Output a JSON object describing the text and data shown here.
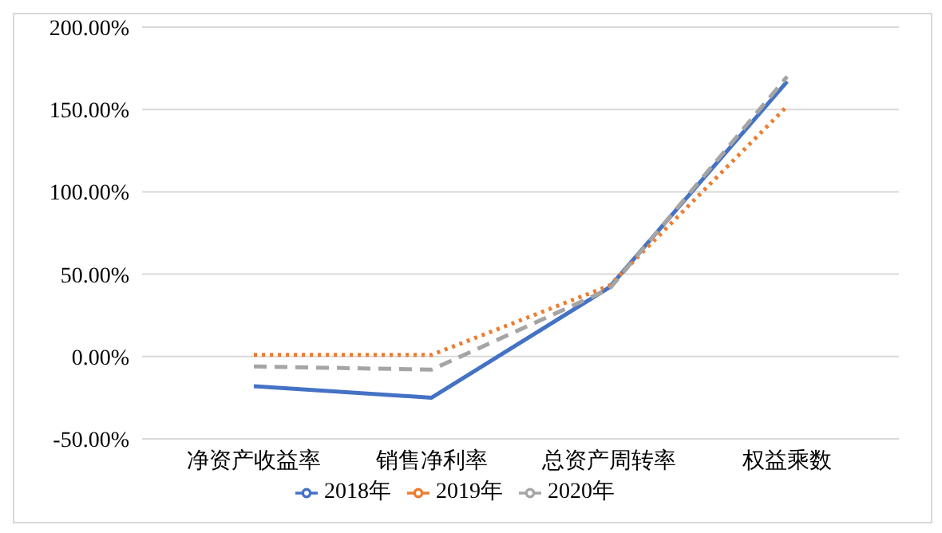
{
  "chart_data": {
    "type": "line",
    "categories": [
      "净资产收益率",
      "销售净利率",
      "总资产周转率",
      "权益乘数"
    ],
    "series": [
      {
        "name": "2018年",
        "color": "#4472c4",
        "line_style": "solid",
        "values": [
          -18,
          -25,
          42,
          167
        ]
      },
      {
        "name": "2019年",
        "color": "#ed7d31",
        "line_style": "dotted",
        "values": [
          1,
          1,
          43,
          152
        ]
      },
      {
        "name": "2020年",
        "color": "#a5a5a5",
        "line_style": "dashed",
        "values": [
          -6,
          -8,
          41,
          170
        ]
      }
    ],
    "ylim": [
      -50,
      200
    ],
    "yticks": [
      {
        "value": -50,
        "label": "-50.00%"
      },
      {
        "value": 0,
        "label": "0.00%"
      },
      {
        "value": 50,
        "label": "50.00%"
      },
      {
        "value": 100,
        "label": "100.00%"
      },
      {
        "value": 150,
        "label": "150.00%"
      },
      {
        "value": 200,
        "label": "200.00%"
      }
    ],
    "grid": "y",
    "legend": "bottom",
    "marker": "none"
  }
}
